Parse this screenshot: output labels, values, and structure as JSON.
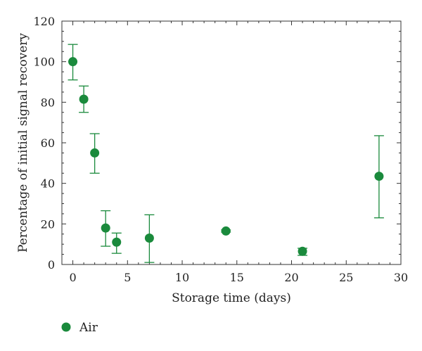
{
  "chart_data": {
    "type": "scatter",
    "title": "",
    "xlabel": "Storage time (days)",
    "ylabel": "Percentage of initial signal recovery",
    "xlim": [
      -1,
      30
    ],
    "ylim": [
      0,
      120
    ],
    "xticks": [
      0,
      5,
      10,
      15,
      20,
      25,
      30
    ],
    "yticks": [
      0,
      20,
      40,
      60,
      80,
      100,
      120
    ],
    "grid": false,
    "legend_position": "bottom-left",
    "series": [
      {
        "name": "Air",
        "color": "#1a8a3c",
        "marker": "circle",
        "points": [
          {
            "x": 0,
            "y": 100.0,
            "err_low": 91.0,
            "err_high": 108.5
          },
          {
            "x": 1,
            "y": 81.5,
            "err_low": 75.0,
            "err_high": 88.0
          },
          {
            "x": 2,
            "y": 55.0,
            "err_low": 45.0,
            "err_high": 64.5
          },
          {
            "x": 3,
            "y": 18.0,
            "err_low": 9.0,
            "err_high": 26.5
          },
          {
            "x": 4,
            "y": 11.0,
            "err_low": 5.5,
            "err_high": 15.5
          },
          {
            "x": 7,
            "y": 13.0,
            "err_low": 1.0,
            "err_high": 24.5
          },
          {
            "x": 14,
            "y": 16.5,
            "err_low": 16.0,
            "err_high": 17.0
          },
          {
            "x": 21,
            "y": 6.5,
            "err_low": 4.5,
            "err_high": 8.0
          },
          {
            "x": 28,
            "y": 43.5,
            "err_low": 23.0,
            "err_high": 63.5
          }
        ]
      }
    ]
  }
}
